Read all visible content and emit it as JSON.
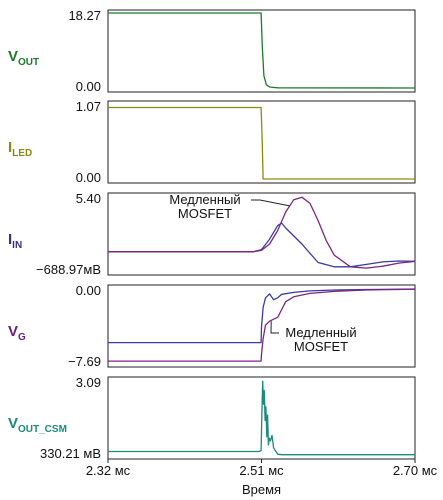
{
  "colors": {
    "vout": "#1e7a2a",
    "iled": "#8c8a10",
    "iin": "#3b2f8a",
    "vg": "#6a1f7a",
    "vout_csm": "#1a8a7a",
    "fast": "#3b3aa0",
    "slow": "#7a2680"
  },
  "chart_data": {
    "type": "line",
    "xlabel": "Время",
    "xlim": [
      2.32,
      2.7
    ],
    "x_ticks": [
      {
        "value": 2.32,
        "label": "2.32 мс"
      },
      {
        "value": 2.51,
        "label": "2.51 мс"
      },
      {
        "value": 2.7,
        "label": "2.70 мс"
      }
    ],
    "panels": [
      {
        "id": "vout",
        "label": {
          "main": "V",
          "sub": "OUT"
        },
        "ylim": [
          0,
          18.27
        ],
        "ytick_labels": [
          "18.27",
          "0.00"
        ],
        "series": [
          {
            "color_key": "vout",
            "x": [
              2.32,
              2.5095,
              2.511,
              2.513,
              2.516,
              2.52,
              2.53,
              2.7
            ],
            "y": [
              18.27,
              18.27,
              10.0,
              3.0,
              0.8,
              0.25,
              0.05,
              0.0
            ]
          }
        ]
      },
      {
        "id": "iled",
        "label": {
          "main": "I",
          "sub": "LED"
        },
        "ylim": [
          0,
          1.07
        ],
        "ytick_labels": [
          "1.07",
          "0.00"
        ],
        "series": [
          {
            "color_key": "iled",
            "x": [
              2.32,
              2.5095,
              2.511,
              2.512,
              2.7
            ],
            "y": [
              1.02,
              1.02,
              0.5,
              0.0,
              0.0
            ]
          }
        ]
      },
      {
        "id": "iin",
        "label": {
          "main": "I",
          "sub": "IN"
        },
        "ylim": [
          -0.68897,
          5.4
        ],
        "ytick_labels": [
          "5.40",
          "−688.97мВ"
        ],
        "annotation": {
          "lines": [
            "Медленный",
            "MOSFET"
          ],
          "target": [
            2.545,
            4.6
          ]
        },
        "series": [
          {
            "color_key": "fast",
            "x": [
              2.32,
              2.5,
              2.51,
              2.52,
              2.53,
              2.535,
              2.54,
              2.55,
              2.56,
              2.57,
              2.58,
              2.6,
              2.62,
              2.64,
              2.66,
              2.68,
              2.7
            ],
            "y": [
              0.88,
              0.88,
              1.05,
              1.9,
              3.0,
              3.2,
              2.8,
              2.15,
              1.5,
              0.75,
              0.0,
              -0.35,
              -0.35,
              -0.15,
              0.05,
              0.12,
              0.1
            ]
          },
          {
            "color_key": "slow",
            "x": [
              2.32,
              2.5,
              2.51,
              2.52,
              2.53,
              2.54,
              2.55,
              2.56,
              2.57,
              2.58,
              2.59,
              2.6,
              2.62,
              2.64,
              2.66,
              2.68,
              2.7
            ],
            "y": [
              0.88,
              0.88,
              0.98,
              1.5,
              2.6,
              4.1,
              5.1,
              5.3,
              4.8,
              3.4,
              1.8,
              0.6,
              -0.35,
              -0.45,
              -0.3,
              -0.05,
              0.1
            ]
          }
        ]
      },
      {
        "id": "vg",
        "label": {
          "main": "V",
          "sub": "G"
        },
        "ylim": [
          -7.69,
          0.0
        ],
        "ytick_labels": [
          "0.00",
          "−7.69"
        ],
        "annotation": {
          "lines": [
            "Медленный",
            "MOSFET"
          ],
          "target": [
            2.522,
            -3.4
          ]
        },
        "series": [
          {
            "color_key": "fast",
            "x": [
              2.32,
              2.5095,
              2.51,
              2.512,
              2.515,
              2.52,
              2.525,
              2.53,
              2.535,
              2.55,
              2.57,
              2.6,
              2.64,
              2.7
            ],
            "y": [
              -5.6,
              -5.6,
              -4.0,
              -2.0,
              -1.0,
              -0.6,
              -1.2,
              -1.0,
              -0.65,
              -0.45,
              -0.3,
              -0.2,
              -0.15,
              -0.1
            ]
          },
          {
            "color_key": "slow",
            "x": [
              2.32,
              2.5095,
              2.51,
              2.512,
              2.515,
              2.52,
              2.525,
              2.53,
              2.535,
              2.54,
              2.55,
              2.57,
              2.6,
              2.64,
              2.7
            ],
            "y": [
              -7.5,
              -7.5,
              -6.8,
              -5.2,
              -3.8,
              -3.4,
              -3.2,
              -3.0,
              -2.2,
              -1.4,
              -0.9,
              -0.55,
              -0.35,
              -0.2,
              -0.12
            ]
          }
        ]
      },
      {
        "id": "vout_csm",
        "label": {
          "main": "V",
          "sub": "OUT_CSM"
        },
        "ylim": [
          0.33021,
          3.09
        ],
        "ytick_labels": [
          "3.09",
          "330.21 мВ"
        ],
        "series": [
          {
            "color_key": "vout_csm",
            "x": [
              2.32,
              2.507,
              2.5095,
              2.5105,
              2.5115,
              2.5125,
              2.5135,
              2.5145,
              2.5155,
              2.5165,
              2.5175,
              2.5185,
              2.5195,
              2.521,
              2.523,
              2.525,
              2.527,
              2.53,
              2.535,
              2.7
            ],
            "y": [
              0.46,
              0.46,
              0.5,
              1.9,
              3.05,
              2.2,
              2.7,
              1.6,
              2.1,
              1.0,
              1.8,
              0.7,
              0.95,
              0.85,
              1.05,
              0.6,
              0.5,
              0.36,
              0.34,
              0.34
            ]
          }
        ]
      }
    ]
  }
}
